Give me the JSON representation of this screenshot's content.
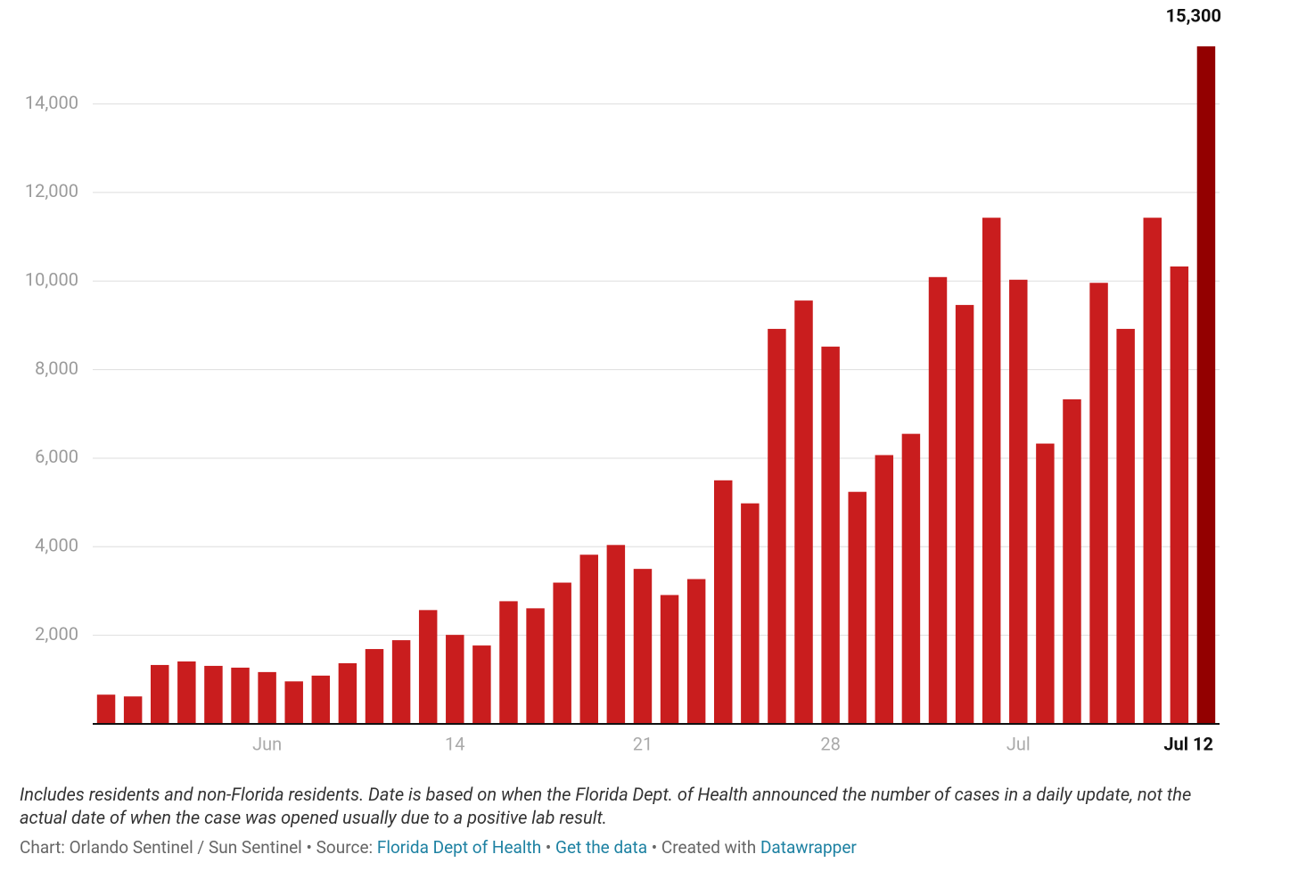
{
  "chart_data": {
    "type": "bar",
    "categories": [
      null,
      null,
      null,
      null,
      null,
      null,
      "Jun",
      null,
      null,
      null,
      null,
      null,
      null,
      "14",
      null,
      null,
      null,
      null,
      null,
      null,
      "21",
      null,
      null,
      null,
      null,
      null,
      null,
      "28",
      null,
      null,
      null,
      null,
      null,
      null,
      "Jul",
      null,
      null,
      null,
      null,
      null,
      null,
      "Jul 12"
    ],
    "values": [
      660,
      620,
      1330,
      1410,
      1310,
      1270,
      1170,
      960,
      1090,
      1370,
      1690,
      1890,
      2570,
      2010,
      1770,
      2770,
      2610,
      3190,
      3820,
      4040,
      3500,
      2910,
      3270,
      5500,
      4980,
      8920,
      9560,
      8520,
      5240,
      6070,
      6550,
      10090,
      9460,
      11430,
      10030,
      6330,
      7330,
      9960,
      8920,
      11430,
      10330,
      15300
    ],
    "value_labels": [
      null,
      null,
      null,
      null,
      null,
      null,
      null,
      null,
      null,
      null,
      null,
      null,
      null,
      null,
      null,
      null,
      null,
      null,
      null,
      null,
      null,
      null,
      null,
      null,
      null,
      null,
      null,
      null,
      null,
      null,
      null,
      null,
      null,
      null,
      null,
      null,
      null,
      null,
      null,
      null,
      null,
      "15,300"
    ],
    "colors": [
      "#c91d1e",
      "#c91d1e",
      "#c91d1e",
      "#c91d1e",
      "#c91d1e",
      "#c91d1e",
      "#c91d1e",
      "#c91d1e",
      "#c91d1e",
      "#c91d1e",
      "#c91d1e",
      "#c91d1e",
      "#c91d1e",
      "#c91d1e",
      "#c91d1e",
      "#c91d1e",
      "#c91d1e",
      "#c91d1e",
      "#c91d1e",
      "#c91d1e",
      "#c91d1e",
      "#c91d1e",
      "#c91d1e",
      "#c91d1e",
      "#c91d1e",
      "#c91d1e",
      "#c91d1e",
      "#c91d1e",
      "#c91d1e",
      "#c91d1e",
      "#c91d1e",
      "#c91d1e",
      "#c91d1e",
      "#c91d1e",
      "#c91d1e",
      "#c91d1e",
      "#c91d1e",
      "#c91d1e",
      "#c91d1e",
      "#c91d1e",
      "#c91d1e",
      "#930000"
    ],
    "ylim": [
      0,
      15300
    ],
    "yticks": [
      {
        "value": 2000,
        "label": "2,000"
      },
      {
        "value": 4000,
        "label": "4,000"
      },
      {
        "value": 6000,
        "label": "6,000"
      },
      {
        "value": 8000,
        "label": "8,000"
      },
      {
        "value": 10000,
        "label": "10,000"
      },
      {
        "value": 12000,
        "label": "12,000"
      },
      {
        "value": 14000,
        "label": "14,000"
      }
    ],
    "grid": true,
    "notes": "Includes residents and non-Florida residents. Date is based on when the Florida Dept. of Health announced the number of cases in a daily update, not the actual date of when the case was opened usually due to a positive lab result.",
    "footer": {
      "credit": "Chart: Orlando Sentinel / Sun Sentinel",
      "source_label": "Source:",
      "source": "Florida Dept of Health",
      "data_link": "Get the data",
      "created_label": "Created with",
      "created_link": "Datawrapper"
    }
  }
}
